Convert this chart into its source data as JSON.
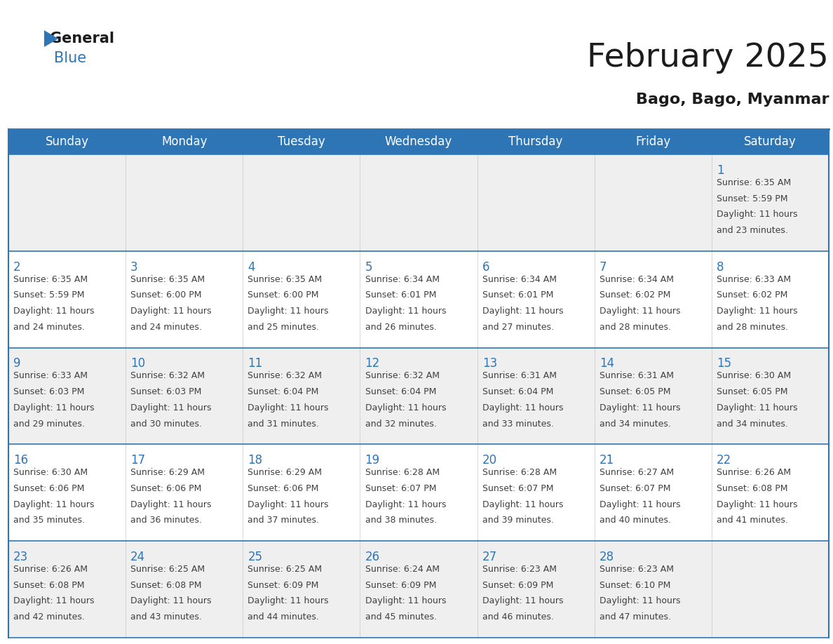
{
  "title": "February 2025",
  "subtitle": "Bago, Bago, Myanmar",
  "days_of_week": [
    "Sunday",
    "Monday",
    "Tuesday",
    "Wednesday",
    "Thursday",
    "Friday",
    "Saturday"
  ],
  "header_bg": "#2E75B6",
  "header_text": "#FFFFFF",
  "cell_bg_odd": "#EFEFEF",
  "cell_bg_even": "#FFFFFF",
  "text_color": "#404040",
  "line_color": "#2E75B6",
  "day_num_color": "#2E75B6",
  "cell_text_color": "#404040",
  "calendar_data": [
    [
      null,
      null,
      null,
      null,
      null,
      null,
      {
        "day": "1",
        "sunrise": "6:35 AM",
        "sunset": "5:59 PM",
        "daylight_l1": "Daylight: 11 hours",
        "daylight_l2": "and 23 minutes."
      }
    ],
    [
      {
        "day": "2",
        "sunrise": "6:35 AM",
        "sunset": "5:59 PM",
        "daylight_l1": "Daylight: 11 hours",
        "daylight_l2": "and 24 minutes."
      },
      {
        "day": "3",
        "sunrise": "6:35 AM",
        "sunset": "6:00 PM",
        "daylight_l1": "Daylight: 11 hours",
        "daylight_l2": "and 24 minutes."
      },
      {
        "day": "4",
        "sunrise": "6:35 AM",
        "sunset": "6:00 PM",
        "daylight_l1": "Daylight: 11 hours",
        "daylight_l2": "and 25 minutes."
      },
      {
        "day": "5",
        "sunrise": "6:34 AM",
        "sunset": "6:01 PM",
        "daylight_l1": "Daylight: 11 hours",
        "daylight_l2": "and 26 minutes."
      },
      {
        "day": "6",
        "sunrise": "6:34 AM",
        "sunset": "6:01 PM",
        "daylight_l1": "Daylight: 11 hours",
        "daylight_l2": "and 27 minutes."
      },
      {
        "day": "7",
        "sunrise": "6:34 AM",
        "sunset": "6:02 PM",
        "daylight_l1": "Daylight: 11 hours",
        "daylight_l2": "and 28 minutes."
      },
      {
        "day": "8",
        "sunrise": "6:33 AM",
        "sunset": "6:02 PM",
        "daylight_l1": "Daylight: 11 hours",
        "daylight_l2": "and 28 minutes."
      }
    ],
    [
      {
        "day": "9",
        "sunrise": "6:33 AM",
        "sunset": "6:03 PM",
        "daylight_l1": "Daylight: 11 hours",
        "daylight_l2": "and 29 minutes."
      },
      {
        "day": "10",
        "sunrise": "6:32 AM",
        "sunset": "6:03 PM",
        "daylight_l1": "Daylight: 11 hours",
        "daylight_l2": "and 30 minutes."
      },
      {
        "day": "11",
        "sunrise": "6:32 AM",
        "sunset": "6:04 PM",
        "daylight_l1": "Daylight: 11 hours",
        "daylight_l2": "and 31 minutes."
      },
      {
        "day": "12",
        "sunrise": "6:32 AM",
        "sunset": "6:04 PM",
        "daylight_l1": "Daylight: 11 hours",
        "daylight_l2": "and 32 minutes."
      },
      {
        "day": "13",
        "sunrise": "6:31 AM",
        "sunset": "6:04 PM",
        "daylight_l1": "Daylight: 11 hours",
        "daylight_l2": "and 33 minutes."
      },
      {
        "day": "14",
        "sunrise": "6:31 AM",
        "sunset": "6:05 PM",
        "daylight_l1": "Daylight: 11 hours",
        "daylight_l2": "and 34 minutes."
      },
      {
        "day": "15",
        "sunrise": "6:30 AM",
        "sunset": "6:05 PM",
        "daylight_l1": "Daylight: 11 hours",
        "daylight_l2": "and 34 minutes."
      }
    ],
    [
      {
        "day": "16",
        "sunrise": "6:30 AM",
        "sunset": "6:06 PM",
        "daylight_l1": "Daylight: 11 hours",
        "daylight_l2": "and 35 minutes."
      },
      {
        "day": "17",
        "sunrise": "6:29 AM",
        "sunset": "6:06 PM",
        "daylight_l1": "Daylight: 11 hours",
        "daylight_l2": "and 36 minutes."
      },
      {
        "day": "18",
        "sunrise": "6:29 AM",
        "sunset": "6:06 PM",
        "daylight_l1": "Daylight: 11 hours",
        "daylight_l2": "and 37 minutes."
      },
      {
        "day": "19",
        "sunrise": "6:28 AM",
        "sunset": "6:07 PM",
        "daylight_l1": "Daylight: 11 hours",
        "daylight_l2": "and 38 minutes."
      },
      {
        "day": "20",
        "sunrise": "6:28 AM",
        "sunset": "6:07 PM",
        "daylight_l1": "Daylight: 11 hours",
        "daylight_l2": "and 39 minutes."
      },
      {
        "day": "21",
        "sunrise": "6:27 AM",
        "sunset": "6:07 PM",
        "daylight_l1": "Daylight: 11 hours",
        "daylight_l2": "and 40 minutes."
      },
      {
        "day": "22",
        "sunrise": "6:26 AM",
        "sunset": "6:08 PM",
        "daylight_l1": "Daylight: 11 hours",
        "daylight_l2": "and 41 minutes."
      }
    ],
    [
      {
        "day": "23",
        "sunrise": "6:26 AM",
        "sunset": "6:08 PM",
        "daylight_l1": "Daylight: 11 hours",
        "daylight_l2": "and 42 minutes."
      },
      {
        "day": "24",
        "sunrise": "6:25 AM",
        "sunset": "6:08 PM",
        "daylight_l1": "Daylight: 11 hours",
        "daylight_l2": "and 43 minutes."
      },
      {
        "day": "25",
        "sunrise": "6:25 AM",
        "sunset": "6:09 PM",
        "daylight_l1": "Daylight: 11 hours",
        "daylight_l2": "and 44 minutes."
      },
      {
        "day": "26",
        "sunrise": "6:24 AM",
        "sunset": "6:09 PM",
        "daylight_l1": "Daylight: 11 hours",
        "daylight_l2": "and 45 minutes."
      },
      {
        "day": "27",
        "sunrise": "6:23 AM",
        "sunset": "6:09 PM",
        "daylight_l1": "Daylight: 11 hours",
        "daylight_l2": "and 46 minutes."
      },
      {
        "day": "28",
        "sunrise": "6:23 AM",
        "sunset": "6:10 PM",
        "daylight_l1": "Daylight: 11 hours",
        "daylight_l2": "and 47 minutes."
      },
      null
    ]
  ],
  "title_fontsize": 34,
  "subtitle_fontsize": 16,
  "header_fontsize": 12,
  "day_num_fontsize": 12,
  "cell_text_fontsize": 9
}
